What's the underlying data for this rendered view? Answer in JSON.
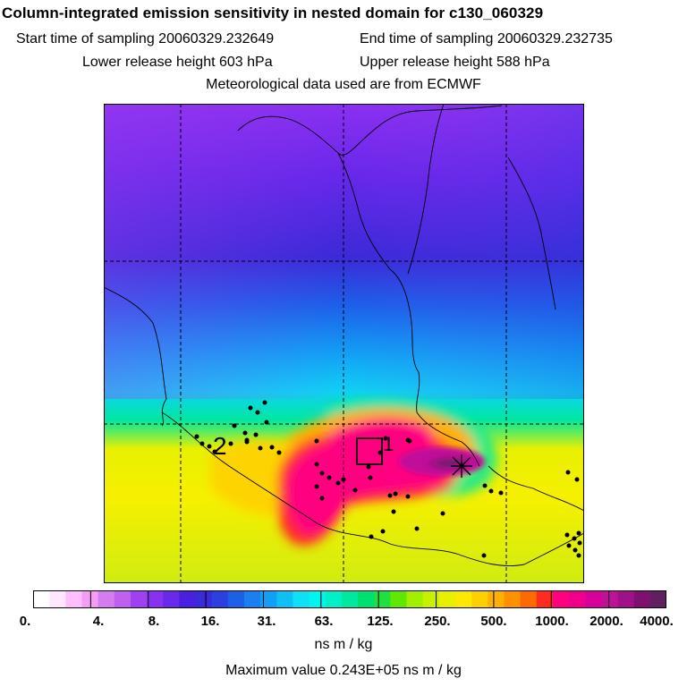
{
  "header": {
    "title": "Column-integrated emission sensitivity in nested domain for c130_060329",
    "start_label": "Start time of sampling 20060329.232649",
    "end_label": "End time of sampling 20060329.232735",
    "lower_label": "Lower release height  603 hPa",
    "upper_label": "Upper release height  588 hPa",
    "met_label": "Meteorological data used are from ECMWF"
  },
  "map": {
    "markers": {
      "label_1": "1",
      "label_2": "2"
    },
    "colors": {
      "border": "#000000",
      "grid": "#000000",
      "points": "#000000",
      "release": "#000000"
    }
  },
  "colorbar": {
    "ticks": [
      "0.",
      "4.",
      "8.",
      "16.",
      "31.",
      "63.",
      "125.",
      "250.",
      "500.",
      "1000.",
      "2000.",
      "4000."
    ],
    "units": "ns m / kg",
    "colors": [
      "#ffffff",
      "#ffe6ff",
      "#ffbfff",
      "#f59cf5",
      "#d47cf0",
      "#c060f0",
      "#a040f0",
      "#8a30f0",
      "#6a28ea",
      "#4a20e0",
      "#3a2ad8",
      "#2a40e0",
      "#1c60e8",
      "#1a80f0",
      "#10a0f5",
      "#10c0f5",
      "#10e0f5",
      "#00f5f0",
      "#00f0c8",
      "#00e8a0",
      "#00e070",
      "#20e040",
      "#60e800",
      "#a0f000",
      "#c8f000",
      "#e8f000",
      "#ffe800",
      "#ffd000",
      "#ffb000",
      "#ff9000",
      "#ff6a00",
      "#ff2a20",
      "#ff0080",
      "#f0008a",
      "#d8009a",
      "#c0109a",
      "#a01088",
      "#801070",
      "#602060"
    ]
  },
  "footer": {
    "max_label": "Maximum value  0.243E+05 ns m / kg"
  }
}
